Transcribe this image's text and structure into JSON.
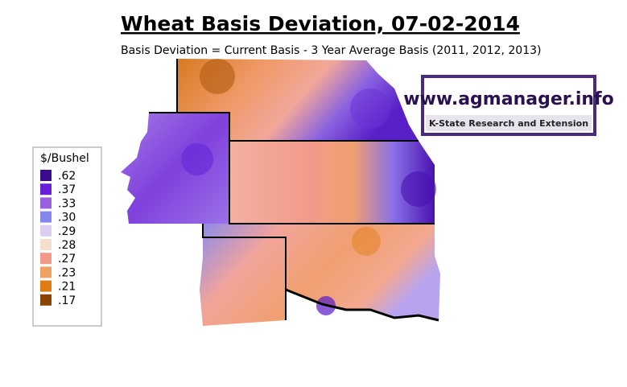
{
  "header": {
    "title": "Wheat Basis Deviation, 07-02-2014",
    "subtitle": "Basis Deviation = Current Basis - 3 Year Average Basis (2011, 2012, 2013)"
  },
  "legend": {
    "title": "$/Bushel",
    "items": [
      {
        "label": ".62",
        "color": "#3c0a8c"
      },
      {
        "label": ".37",
        "color": "#6a1fd8"
      },
      {
        "label": ".33",
        "color": "#9a60e2"
      },
      {
        "label": ".30",
        "color": "#8585ee"
      },
      {
        "label": ".29",
        "color": "#dccdf2"
      },
      {
        "label": ".28",
        "color": "#f6dccb"
      },
      {
        "label": ".27",
        "color": "#f29a8a"
      },
      {
        "label": ".23",
        "color": "#f0a060"
      },
      {
        "label": ".21",
        "color": "#e07a12"
      },
      {
        "label": ".17",
        "color": "#8b4205"
      }
    ]
  },
  "logo": {
    "url": "www.agmanager.info",
    "org": "K-State Research and Extension"
  }
}
